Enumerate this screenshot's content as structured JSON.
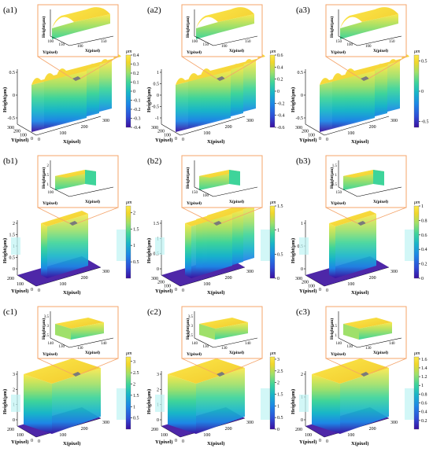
{
  "chart_data": [
    {
      "id": "a1",
      "type": "surface3d",
      "label": "(a1)",
      "shape": "ridge",
      "ridges": 3,
      "xlabel": "X(pixel)",
      "ylabel": "Y(pixel)",
      "zlabel": "Height(μm)",
      "x_ticks": [
        "0",
        "100",
        "200",
        "300"
      ],
      "y_ticks": [
        "0",
        "100",
        "200",
        "300"
      ],
      "z_ticks": [
        "-0.5",
        "0",
        "0.5"
      ],
      "colorbar": {
        "unit": "μm",
        "ticks": [
          "0.4",
          "0.3",
          "0.2",
          "0.1",
          "0",
          "-0.1",
          "-0.2",
          "-0.3",
          "-0.4"
        ],
        "range": [
          -0.4,
          0.4
        ]
      },
      "inset": {
        "zlabel": "Height(μm)",
        "xlabel": "X(pixel)",
        "ylabel": "Y(pixel)",
        "x_ticks": [
          "100",
          "150"
        ],
        "y_ticks": [
          "100",
          "150"
        ]
      }
    },
    {
      "id": "a2",
      "type": "surface3d",
      "label": "(a2)",
      "shape": "ridge",
      "ridges": 3,
      "xlabel": "X(pixel)",
      "ylabel": "Y(pixel)",
      "zlabel": "Height(μm)",
      "x_ticks": [
        "0",
        "100",
        "200",
        "300"
      ],
      "y_ticks": [
        "0",
        "100",
        "200",
        "300"
      ],
      "z_ticks": [
        "-1",
        "-0.5",
        "0",
        "0.5",
        "1"
      ],
      "colorbar": {
        "unit": "μm",
        "ticks": [
          "0.6",
          "0.4",
          "0.2",
          "0",
          "-0.2",
          "-0.4",
          "-0.6"
        ],
        "range": [
          -0.6,
          0.6
        ]
      },
      "inset": {
        "zlabel": "Height(μm)",
        "xlabel": "X(pixel)",
        "ylabel": "Y(pixel)",
        "x_ticks": [
          "100",
          "150"
        ],
        "y_ticks": [
          "100",
          "150"
        ]
      }
    },
    {
      "id": "a3",
      "type": "surface3d",
      "label": "(a3)",
      "shape": "ridge",
      "ridges": 3,
      "xlabel": "X(pixel)",
      "ylabel": "Y(pixel)",
      "zlabel": "Height(μm)",
      "x_ticks": [
        "0",
        "100",
        "200",
        "300"
      ],
      "y_ticks": [
        "0",
        "100",
        "200",
        "300"
      ],
      "z_ticks": [
        "-0.5",
        "0",
        "0.5"
      ],
      "colorbar": {
        "unit": "μm",
        "ticks": [
          "0.5",
          "0",
          "-0.5"
        ],
        "range": [
          -0.6,
          0.6
        ]
      },
      "inset": {
        "zlabel": "Height(μm)",
        "xlabel": "X(pixel)",
        "ylabel": "Y(pixel)",
        "x_ticks": [
          "100",
          "150"
        ],
        "y_ticks": [
          "150",
          "100"
        ]
      }
    },
    {
      "id": "b1",
      "type": "surface3d",
      "label": "(b1)",
      "shape": "block",
      "ridges": 1,
      "xlabel": "X(pixel)",
      "ylabel": "Y(pixel)",
      "zlabel": "Height(μm)",
      "x_ticks": [
        "0",
        "100",
        "200",
        "300"
      ],
      "y_ticks": [
        "0",
        "100",
        "200"
      ],
      "z_ticks": [
        "0",
        "0.5",
        "1",
        "1.5",
        "2"
      ],
      "colorbar": {
        "unit": "μm",
        "ticks": [
          "2",
          "1.5",
          "1",
          "0.5"
        ],
        "range": [
          0,
          2.2
        ]
      },
      "inset": {
        "zlabel": "Height(μm)",
        "xlabel": "X(pixel)",
        "ylabel": "Y(pixel)",
        "x_ticks": [],
        "y_ticks": [
          "100"
        ],
        "z_ticks": [
          "1",
          "1.5",
          "2"
        ]
      }
    },
    {
      "id": "b2",
      "type": "surface3d",
      "label": "(b2)",
      "shape": "block",
      "ridges": 3,
      "xlabel": "X(pixel)",
      "ylabel": "Y(pixel)",
      "zlabel": "Height(μm)",
      "x_ticks": [
        "0",
        "100",
        "200",
        "300"
      ],
      "y_ticks": [
        "0",
        "100",
        "200",
        "300"
      ],
      "z_ticks": [
        "0",
        "0.5",
        "1",
        "1.5"
      ],
      "colorbar": {
        "unit": "μm",
        "ticks": [
          "1.5",
          "1",
          "0.5",
          "0"
        ],
        "range": [
          0,
          1.5
        ]
      },
      "inset": {
        "zlabel": "Height(μm)",
        "xlabel": "X(pixel)",
        "ylabel": "Y(pixel)",
        "x_ticks": [],
        "y_ticks": [
          "150",
          "100"
        ]
      }
    },
    {
      "id": "b3",
      "type": "surface3d",
      "label": "(b3)",
      "shape": "block",
      "ridges": 1,
      "xlabel": "X(pixel)",
      "ylabel": "Y(pixel)",
      "zlabel": "Height(μm)",
      "x_ticks": [
        "0",
        "100",
        "200",
        "300"
      ],
      "y_ticks": [
        "0",
        "100",
        "200",
        "300"
      ],
      "z_ticks": [
        "0",
        "0.5",
        "1"
      ],
      "colorbar": {
        "unit": "μm",
        "ticks": [
          "1",
          "0.8",
          "0.6",
          "0.4",
          "0.2",
          "0"
        ],
        "range": [
          0,
          1
        ]
      },
      "inset": {
        "zlabel": "Height(μm)",
        "xlabel": "X(pixel)",
        "ylabel": "Y(pixel)",
        "x_ticks": [],
        "y_ticks": [
          "150"
        ],
        "z_ticks": [
          "0.5",
          "1",
          "1.5"
        ]
      }
    },
    {
      "id": "c1",
      "type": "surface3d",
      "label": "(c1)",
      "shape": "step",
      "ridges": 1,
      "xlabel": "X(pixel)",
      "ylabel": "Y(pixel)",
      "zlabel": "Height(μm)",
      "x_ticks": [
        "0",
        "100",
        "200",
        "300"
      ],
      "y_ticks": [
        "0",
        "100",
        "200"
      ],
      "z_ticks": [
        "0",
        "1",
        "2",
        "3"
      ],
      "colorbar": {
        "unit": "μm",
        "ticks": [
          "3",
          "2.5",
          "2",
          "1.5",
          "1",
          "0.5"
        ],
        "range": [
          0,
          3.2
        ]
      },
      "inset": {
        "zlabel": "Height(μm)",
        "xlabel": "X(pixel)",
        "ylabel": "Y(pixel)",
        "x_ticks": [
          "130",
          "140"
        ],
        "y_ticks": [
          "140",
          "130"
        ],
        "z_ticks": [
          "2.5",
          "3",
          "3.5"
        ]
      }
    },
    {
      "id": "c2",
      "type": "surface3d",
      "label": "(c2)",
      "shape": "step",
      "ridges": 1,
      "xlabel": "X(pixel)",
      "ylabel": "Y(pixel)",
      "zlabel": "Height(μm)",
      "x_ticks": [
        "0",
        "100",
        "200",
        "300"
      ],
      "y_ticks": [
        "0",
        "100",
        "200"
      ],
      "z_ticks": [
        "0",
        "1",
        "2",
        "3"
      ],
      "colorbar": {
        "unit": "μm",
        "ticks": [
          "3",
          "2.5",
          "2",
          "1.5",
          "1",
          "0.5",
          "0"
        ],
        "range": [
          0,
          3.1
        ]
      },
      "inset": {
        "zlabel": "Height(μm)",
        "xlabel": "X(pixel)",
        "ylabel": "Y(pixel)",
        "x_ticks": [
          "130",
          "140"
        ],
        "y_ticks": [
          "140",
          "130"
        ],
        "z_ticks": [
          "2.5",
          "3",
          "3.5"
        ]
      }
    },
    {
      "id": "c3",
      "type": "surface3d",
      "label": "(c3)",
      "shape": "step",
      "ridges": 1,
      "xlabel": "X(pixel)",
      "ylabel": "Y(pixel)",
      "zlabel": "Height(μm)",
      "x_ticks": [
        "0",
        "100",
        "200",
        "300"
      ],
      "y_ticks": [
        "0",
        "100",
        "200"
      ],
      "z_ticks": [
        "0",
        "1",
        "2"
      ],
      "colorbar": {
        "unit": "μm",
        "ticks": [
          "1.6",
          "1.4",
          "1.2",
          "1",
          "0.8",
          "0.6",
          "0.4",
          "0.2"
        ],
        "range": [
          0,
          1.65
        ]
      },
      "inset": {
        "zlabel": "Height(μm)",
        "xlabel": "X(pixel)",
        "ylabel": "Y(pixel)",
        "x_ticks": [
          "130",
          "140"
        ],
        "y_ticks": [
          "140",
          "130"
        ],
        "z_ticks": [
          "1",
          "1.5"
        ]
      }
    }
  ],
  "colors": {
    "inset_border": "#f4a46a",
    "marker": "#7b7b7b",
    "colormap": [
      "#3b0f9f",
      "#2f4dd6",
      "#1d86e6",
      "#18b5c8",
      "#3ed49a",
      "#9fe06a",
      "#f2d72a",
      "#fbe84b"
    ]
  }
}
